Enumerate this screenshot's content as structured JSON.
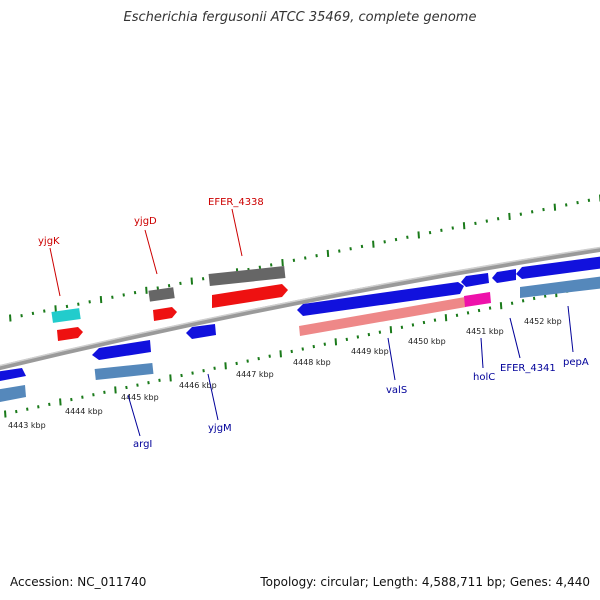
{
  "title": "Escherichia fergusonii ATCC 35469, complete genome",
  "accession": "Accession: NC_011740",
  "topology": "Topology: circular; Length: 4,588,711 bp; Genes: 4,440",
  "colors": {
    "backbone": "#8a8a8a",
    "tick": "#1a7a1a",
    "forward_gene": "#ee1111",
    "reverse_gene": "#1111dd",
    "forward_label": "#cc0000",
    "reverse_label": "#000099",
    "cyan": "#22cccc",
    "gray_feature": "#666666",
    "pink_feature": "#ee8888",
    "magenta_feature": "#ee11aa",
    "steel_feature": "#5588bb"
  },
  "kbp_labels": [
    "4443 kbp",
    "4444 kbp",
    "4445 kbp",
    "4446 kbp",
    "4447 kbp",
    "4448 kbp",
    "4449 kbp",
    "4450 kbp",
    "4451 kbp",
    "4452 kbp"
  ],
  "top_genes": [
    "yjgK",
    "yjgD",
    "EFER_4338"
  ],
  "bottom_genes": [
    "argI",
    "yjgM",
    "valS",
    "holC",
    "EFER_4341",
    "pepA"
  ]
}
